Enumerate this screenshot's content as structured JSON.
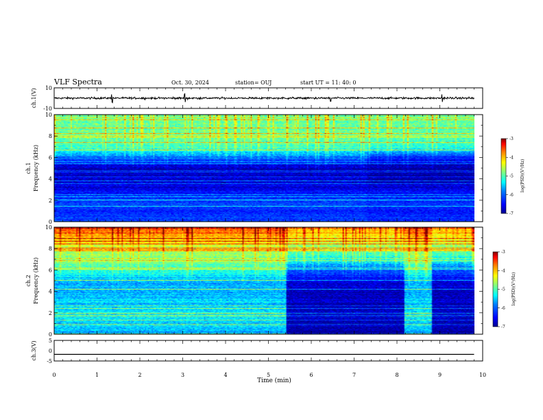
{
  "header": {
    "title": "VLF Spectra",
    "date": "Oct. 30, 2024",
    "station": "station= OUJ",
    "start": "start UT =  11: 40: 0"
  },
  "colors": {
    "cmap": [
      "#00008f",
      "#0000ff",
      "#0080ff",
      "#00ffff",
      "#80ff80",
      "#ffff00",
      "#ff8000",
      "#ff0000",
      "#800000"
    ]
  },
  "chart_data": [
    {
      "type": "line",
      "panel": "ch1-waveform",
      "ylabel": "ch.1(V)",
      "ylim": [
        -10,
        10
      ],
      "yticks": [
        "10",
        "-10"
      ],
      "x": [
        0,
        10
      ],
      "y_mean": 0,
      "noise_band_V": 0.8,
      "spikes_min": [
        1.35,
        3.05,
        6.45,
        9.05
      ]
    },
    {
      "type": "heatmap",
      "panel": "ch1-spectrogram",
      "ylabel": "ch.1\nFrequency (kHz)",
      "ylim": [
        0,
        10
      ],
      "yticks": [
        "0",
        "2",
        "4",
        "6",
        "8",
        "10"
      ],
      "xlim": [
        0,
        10
      ],
      "colorbar": {
        "label": "log(PSD)(V²/Hz)",
        "ticks": [
          "-3",
          "-4",
          "-5",
          "-6",
          "-7"
        ],
        "range": [
          -7,
          -3
        ]
      },
      "profile_freq_kHz": [
        0,
        1,
        2,
        3,
        4,
        5,
        6,
        7,
        8,
        9,
        10
      ],
      "profile_logpsd": [
        -6.2,
        -6.3,
        -6.1,
        -6.6,
        -6.7,
        -6.8,
        -5.9,
        -5.0,
        -4.9,
        -4.9,
        -4.9
      ],
      "late_change_min": 7.3,
      "late_profile_logpsd": [
        -6.3,
        -6.4,
        -6.2,
        -6.6,
        -6.9,
        -6.9,
        -6.3,
        -5.1,
        -5.0,
        -4.9,
        -4.9
      ]
    },
    {
      "type": "heatmap",
      "panel": "ch2-spectrogram",
      "ylabel": "ch.2\nFrequency (kHz)",
      "ylim": [
        0,
        10
      ],
      "yticks": [
        "0",
        "2",
        "4",
        "6",
        "8",
        "10"
      ],
      "xlim": [
        0,
        10
      ],
      "colorbar": {
        "label": "log(PSD)(V²/Hz)",
        "ticks": [
          "-3",
          "-4",
          "-5",
          "-6",
          "-7"
        ],
        "range": [
          -7,
          -3
        ]
      },
      "profile_freq_kHz": [
        0,
        1,
        2,
        3,
        4,
        5,
        6,
        7,
        8,
        9,
        10
      ],
      "profile_logpsd": [
        -5.6,
        -5.5,
        -5.4,
        -5.5,
        -5.6,
        -5.6,
        -5.1,
        -4.8,
        -4.5,
        -4.0,
        -3.6
      ],
      "late_change_min": 5.4,
      "late_profile_logpsd": [
        -6.9,
        -6.9,
        -6.8,
        -6.8,
        -6.8,
        -6.6,
        -6.0,
        -5.3,
        -4.7,
        -4.3,
        -4.0
      ],
      "recovery_intervals_min": [
        [
          8.15,
          8.8
        ]
      ]
    },
    {
      "type": "line",
      "panel": "ch3-waveform",
      "ylabel": "ch.3(V)",
      "ylim": [
        -5,
        5
      ],
      "yticks": [
        "5",
        "0",
        "-5"
      ],
      "x": [
        0,
        10
      ],
      "y": [
        -1.8,
        -1.8
      ]
    }
  ],
  "xaxis": {
    "label": "Time (min)",
    "ticks": [
      "0",
      "1",
      "2",
      "3",
      "4",
      "5",
      "6",
      "7",
      "8",
      "9",
      "10"
    ]
  }
}
